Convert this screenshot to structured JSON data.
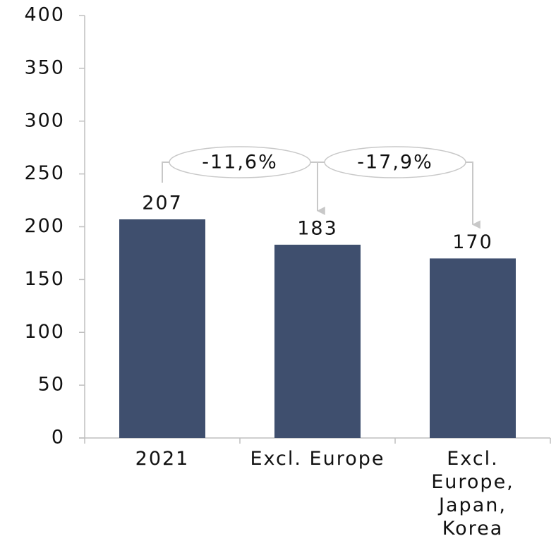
{
  "chart_data": {
    "type": "bar",
    "categories": [
      "2021",
      "Excl. Europe",
      "Excl. Europe, Japan, Korea"
    ],
    "values": [
      207,
      183,
      170
    ],
    "color": "#3f4f6e",
    "ylim": [
      0,
      400
    ],
    "yticks": [
      0,
      50,
      100,
      150,
      200,
      250,
      300,
      350,
      400
    ],
    "grid": false,
    "annotations": [
      {
        "text": "-11,6%",
        "from": 0,
        "to": 1
      },
      {
        "text": "-17,9%",
        "from": 1,
        "to": 2
      }
    ]
  }
}
